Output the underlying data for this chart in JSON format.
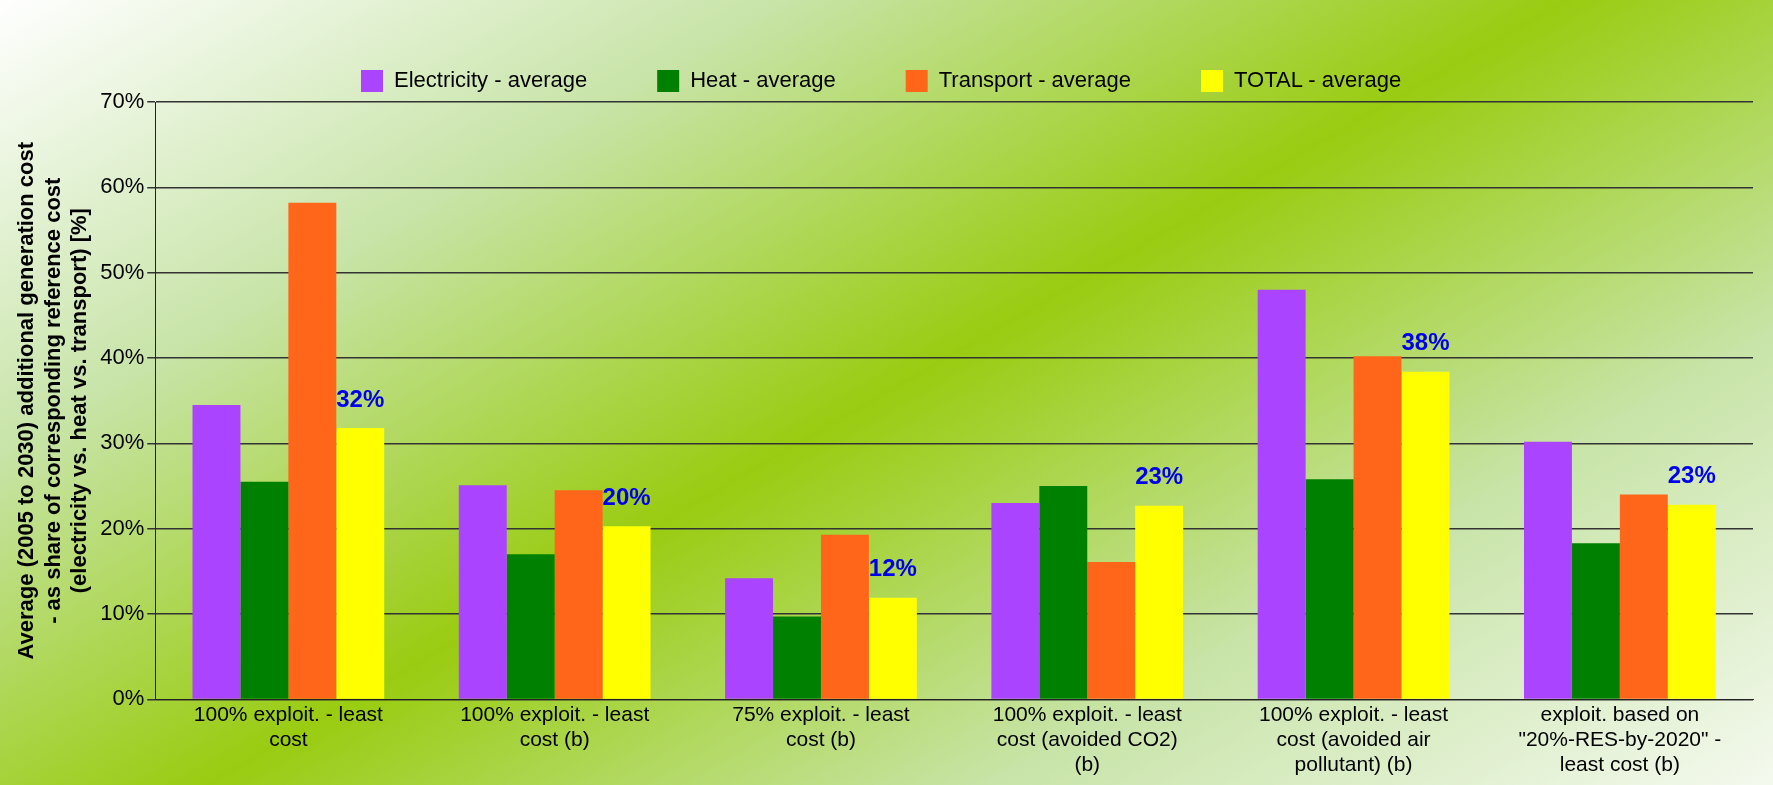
{
  "chart_data": {
    "type": "bar",
    "ylabel": "Average (2005 to 2030) additional generation cost - as share of corresponding reference cost (electricity vs. heat vs. transport) [%]",
    "categories": [
      "100% exploit. - least cost",
      "100% exploit. - least cost (b)",
      "75% exploit. - least cost (b)",
      "100% exploit. - least cost (avoided CO2) (b)",
      "100% exploit. - least cost (avoided air pollutant) (b)",
      "exploit. based on \"20%-RES-by-2020\" - least cost (b)"
    ],
    "series": [
      {
        "name": "Electricity - average",
        "color": "#aa44ff",
        "values": [
          34.5,
          25.1,
          14.2,
          23,
          48,
          30.2
        ]
      },
      {
        "name": "Heat - average",
        "color": "#008000",
        "values": [
          25.5,
          17,
          9.7,
          25,
          25.8,
          18.3
        ]
      },
      {
        "name": "Transport - average",
        "color": "#ff6619",
        "values": [
          58.2,
          24.5,
          19.3,
          16.1,
          40.2,
          24
        ]
      },
      {
        "name": "TOTAL - average",
        "color": "#ffff00",
        "values": [
          31.8,
          20.3,
          11.9,
          22.7,
          38.4,
          22.8
        ],
        "value_labels": [
          "32%",
          "20%",
          "12%",
          "23%",
          "38%",
          "23%"
        ]
      }
    ],
    "ylim": [
      0,
      70
    ],
    "yticks": [
      {
        "value": 0,
        "label": "0%"
      },
      {
        "value": 10,
        "label": "10%"
      },
      {
        "value": 20,
        "label": "20%"
      },
      {
        "value": 30,
        "label": "30%"
      },
      {
        "value": 40,
        "label": "40%"
      },
      {
        "value": 50,
        "label": "50%"
      },
      {
        "value": 60,
        "label": "60%"
      },
      {
        "value": 70,
        "label": "70%"
      }
    ],
    "grid": "y",
    "legend": "top"
  }
}
